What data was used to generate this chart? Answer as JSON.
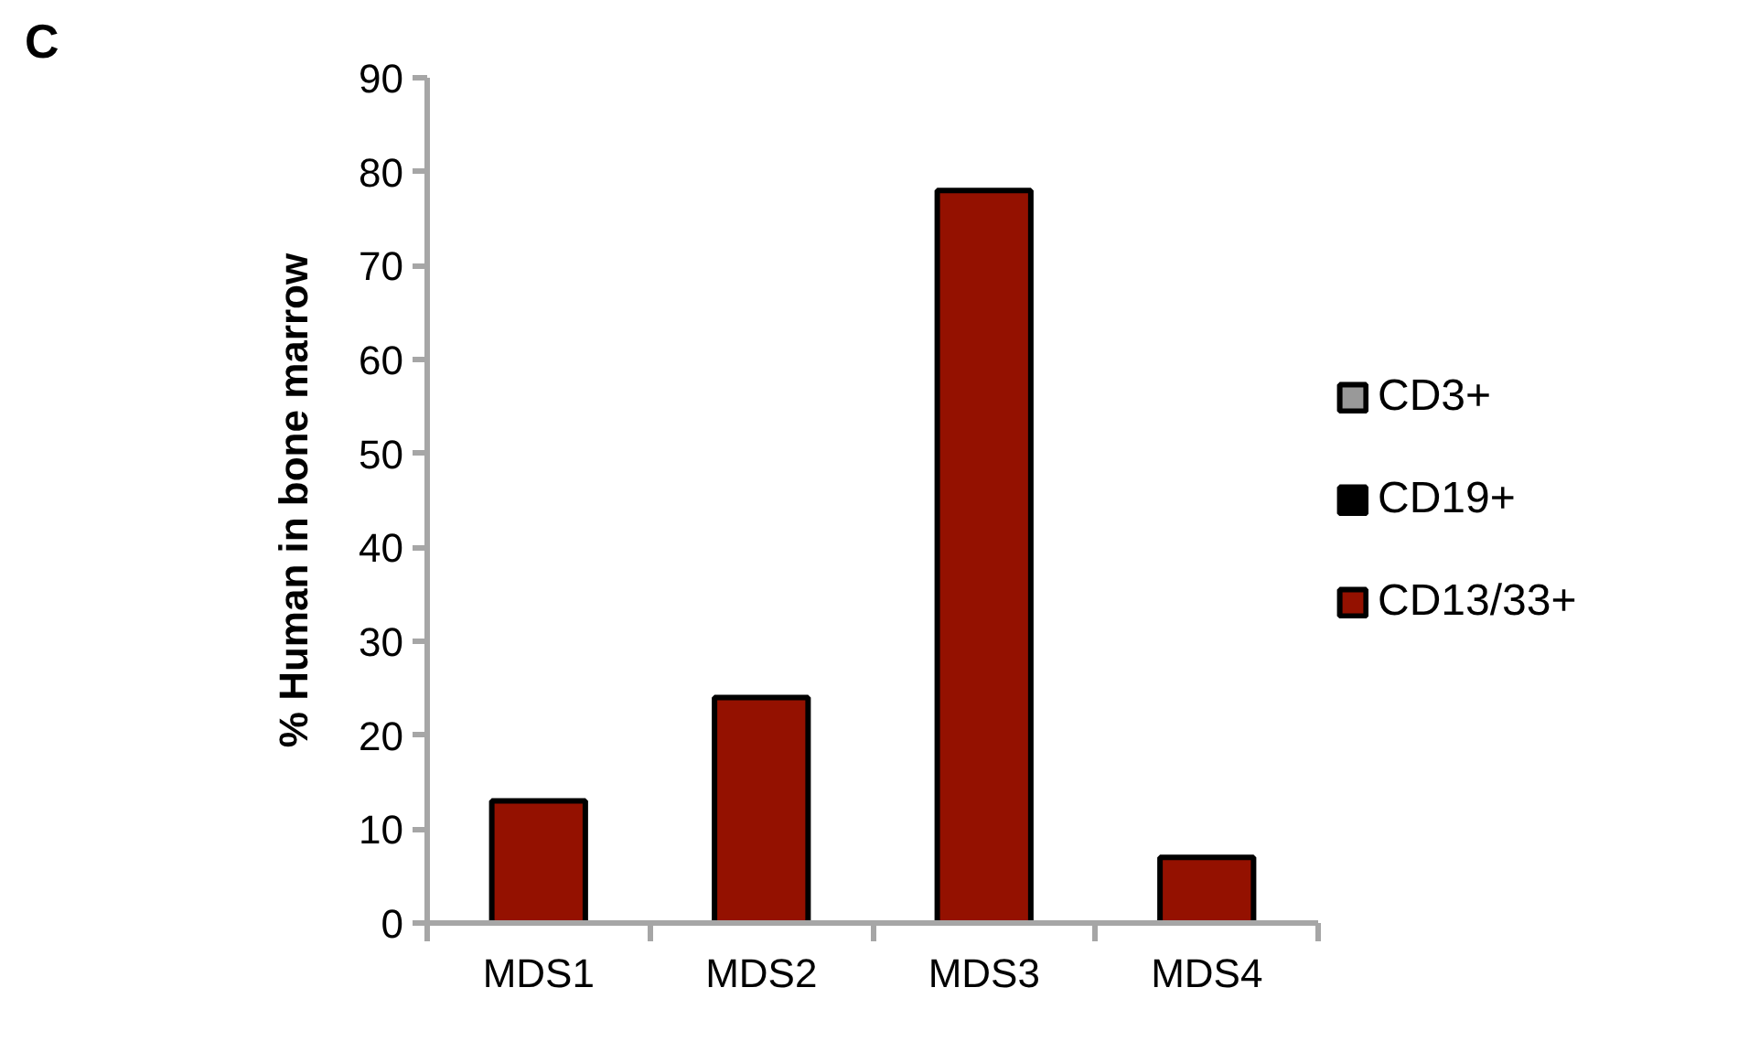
{
  "chart_data": {
    "type": "bar",
    "title": "C",
    "ylabel": "% Human in bone marrow",
    "categories": [
      "MDS1",
      "MDS2",
      "MDS3",
      "MDS4"
    ],
    "series": [
      {
        "name": "CD3+",
        "color": "#999999",
        "values": [
          0,
          0,
          0,
          0
        ]
      },
      {
        "name": "CD19+",
        "color": "#000000",
        "values": [
          0,
          0,
          0,
          0
        ]
      },
      {
        "name": "CD13/33+",
        "color": "#941100",
        "values": [
          13,
          24,
          78,
          7
        ]
      }
    ],
    "ylim": [
      0,
      90
    ],
    "yticks": [
      0,
      10,
      20,
      30,
      40,
      50,
      60,
      70,
      80,
      90
    ],
    "grid": false,
    "legend": "right"
  }
}
